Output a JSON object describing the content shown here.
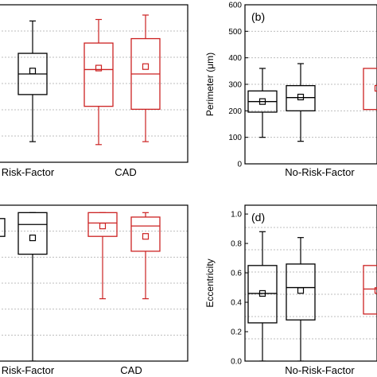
{
  "chart_data": [
    {
      "panel_label": "",
      "type": "box",
      "ylabel": "",
      "grid": true,
      "categories": [
        "Risk-Factor",
        "CAD"
      ],
      "series": [
        {
          "group": 0,
          "color": "#000000",
          "boxes": [
            {
              "whisker_low": null,
              "q1": null,
              "median": null,
              "q3": null,
              "whisker_high": null,
              "mean": null
            }
          ]
        },
        {
          "group": 0,
          "color": "#000000",
          "boxes": [
            {
              "whisker_low": 0.14,
              "q1": 0.46,
              "median": 0.6,
              "q3": 0.74,
              "whisker_high": 0.96,
              "mean": 0.62
            }
          ]
        },
        {
          "group": 1,
          "color": "#cc2222",
          "boxes": [
            {
              "whisker_low": 0.12,
              "q1": 0.38,
              "median": 0.63,
              "q3": 0.81,
              "whisker_high": 0.97,
              "mean": 0.64
            }
          ]
        },
        {
          "group": 1,
          "color": "#cc2222",
          "boxes": [
            {
              "whisker_low": 0.14,
              "q1": 0.36,
              "median": 0.6,
              "q3": 0.84,
              "whisker_high": 1.0,
              "mean": 0.65
            }
          ]
        }
      ]
    },
    {
      "panel_label": "(b)",
      "type": "box",
      "ylabel": "Perimeter (μm)",
      "ylim": [
        0,
        600
      ],
      "yticks": [
        "0",
        "100",
        "200",
        "300",
        "400",
        "500",
        "600"
      ],
      "grid": true,
      "categories": [
        "No-Risk-Factor"
      ],
      "series": [
        {
          "group": 0,
          "color": "#000000",
          "boxes": [
            {
              "whisker_low": 100,
              "q1": 195,
              "median": 235,
              "q3": 275,
              "whisker_high": 360,
              "mean": 235
            }
          ]
        },
        {
          "group": 0,
          "color": "#000000",
          "boxes": [
            {
              "whisker_low": 85,
              "q1": 200,
              "median": 250,
              "q3": 295,
              "whisker_high": 378,
              "mean": 252
            }
          ]
        },
        {
          "group": 1,
          "color": "#cc2222",
          "boxes": [
            {
              "whisker_low": null,
              "q1": 205,
              "median": null,
              "q3": 360,
              "whisker_high": null,
              "mean": 285
            }
          ]
        }
      ]
    },
    {
      "panel_label": "",
      "type": "box",
      "ylabel": "",
      "grid": true,
      "categories": [
        "Risk-Factor",
        "CAD"
      ],
      "series": [
        {
          "group": 0,
          "color": "#000000",
          "boxes": [
            {
              "whisker_low": null,
              "q1": 0.84,
              "median": null,
              "q3": 0.96,
              "whisker_high": null,
              "mean": null
            }
          ]
        },
        {
          "group": 0,
          "color": "#000000",
          "boxes": [
            {
              "whisker_low": 0.0,
              "q1": 0.72,
              "median": 0.92,
              "q3": 1.0,
              "whisker_high": 1.0,
              "mean": 0.83
            }
          ]
        },
        {
          "group": 1,
          "color": "#cc2222",
          "boxes": [
            {
              "whisker_low": 0.42,
              "q1": 0.84,
              "median": 0.93,
              "q3": 1.0,
              "whisker_high": 1.0,
              "mean": 0.91
            }
          ]
        },
        {
          "group": 1,
          "color": "#cc2222",
          "boxes": [
            {
              "whisker_low": 0.42,
              "q1": 0.74,
              "median": 0.91,
              "q3": 0.97,
              "whisker_high": 1.0,
              "mean": 0.84
            }
          ]
        }
      ]
    },
    {
      "panel_label": "(d)",
      "type": "box",
      "ylabel": "Eccentricity",
      "ylim": [
        0,
        1.0
      ],
      "yticks": [
        "0.0",
        "0.2",
        "0.4",
        "0.6",
        "0.8",
        "1.0"
      ],
      "grid": true,
      "categories": [
        "No-Risk-Factor"
      ],
      "series": [
        {
          "group": 0,
          "color": "#000000",
          "boxes": [
            {
              "whisker_low": 0.0,
              "q1": 0.26,
              "median": 0.46,
              "q3": 0.65,
              "whisker_high": 0.88,
              "mean": 0.46
            }
          ]
        },
        {
          "group": 0,
          "color": "#000000",
          "boxes": [
            {
              "whisker_low": 0.0,
              "q1": 0.28,
              "median": 0.5,
              "q3": 0.66,
              "whisker_high": 0.84,
              "mean": 0.48
            }
          ]
        },
        {
          "group": 1,
          "color": "#cc2222",
          "boxes": [
            {
              "whisker_low": null,
              "q1": 0.32,
              "median": 0.49,
              "q3": 0.65,
              "whisker_high": null,
              "mean": 0.48
            }
          ]
        }
      ]
    }
  ]
}
